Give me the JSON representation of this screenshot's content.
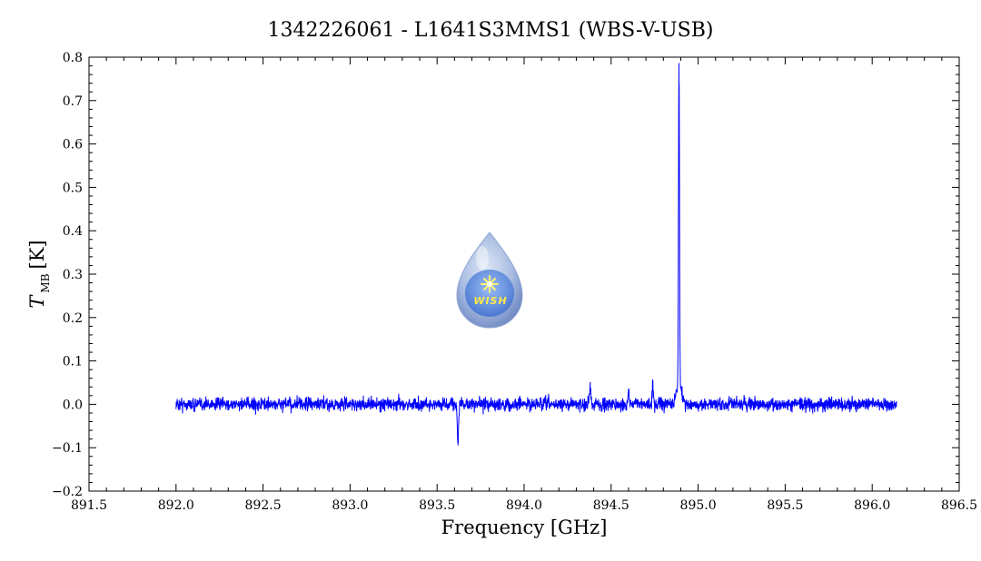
{
  "chart_data": {
    "type": "line",
    "title": "1342226061 - L1641S3MMS1 (WBS-V-USB)",
    "xlabel": "Frequency [GHz]",
    "ylabel_main": "T",
    "ylabel_sub": "MB",
    "ylabel_unit": "[K]",
    "xlim": [
      891.5,
      896.5
    ],
    "ylim": [
      -0.2,
      0.8
    ],
    "x_ticks": [
      891.5,
      892.0,
      892.5,
      893.0,
      893.5,
      894.0,
      894.5,
      895.0,
      895.5,
      896.0,
      896.5
    ],
    "x_tick_labels": [
      "891.5",
      "892.0",
      "892.5",
      "893.0",
      "893.5",
      "894.0",
      "894.5",
      "895.0",
      "895.5",
      "896.0",
      "896.5"
    ],
    "y_ticks": [
      -0.2,
      -0.1,
      0.0,
      0.1,
      0.2,
      0.3,
      0.4,
      0.5,
      0.6,
      0.7,
      0.8
    ],
    "y_tick_labels": [
      "−0.2",
      "−0.1",
      "0.0",
      "0.1",
      "0.2",
      "0.3",
      "0.4",
      "0.5",
      "0.6",
      "0.7",
      "0.8"
    ],
    "grid": false,
    "series": [
      {
        "color": "#0000ff",
        "x_range": [
          892.0,
          896.14
        ],
        "noise_rms": 0.01,
        "features": [
          {
            "x": 893.62,
            "y": -0.085
          },
          {
            "x": 894.38,
            "y": 0.05
          },
          {
            "x": 894.6,
            "y": 0.035
          },
          {
            "x": 894.74,
            "y": 0.05
          },
          {
            "x": 894.89,
            "y": 0.74
          }
        ]
      }
    ]
  },
  "logo": {
    "text": "WISH",
    "icon": "water-drop-star-icon"
  }
}
